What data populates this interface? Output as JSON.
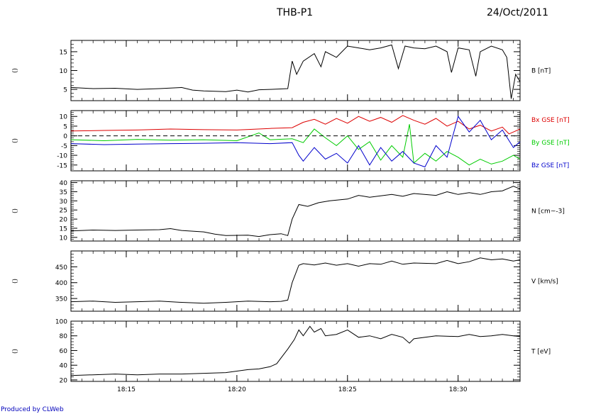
{
  "header": {
    "title": "THB-P1",
    "date": "24/Oct/2011"
  },
  "footer": {
    "credit": "Produced by CLWeb"
  },
  "chart_data": [
    {
      "type": "line",
      "ylabel": "B [nT]",
      "left_label": "()",
      "ylim": [
        2,
        18
      ],
      "yticks": [
        5,
        10,
        15
      ],
      "xlim": [
        12.5,
        32.8
      ],
      "xticks": [
        15,
        20,
        25,
        30
      ],
      "xticklabels": [
        "18:15",
        "18:20",
        "18:25",
        "18:30"
      ],
      "series": [
        {
          "color": "#000000",
          "dashed": false,
          "x": [
            12.5,
            13.5,
            14.5,
            15.5,
            16.5,
            17.5,
            18.0,
            18.5,
            19.5,
            20.0,
            20.5,
            21.0,
            21.5,
            22.3,
            22.5,
            22.7,
            23.0,
            23.5,
            23.8,
            24.0,
            24.5,
            25.0,
            25.5,
            26.0,
            26.5,
            27.0,
            27.3,
            27.6,
            28.0,
            28.5,
            29.0,
            29.5,
            29.7,
            30.0,
            30.5,
            30.8,
            31.0,
            31.5,
            32.0,
            32.2,
            32.4,
            32.6,
            32.8
          ],
          "y": [
            5.5,
            5.2,
            5.3,
            5.0,
            5.2,
            5.5,
            4.8,
            4.6,
            4.4,
            4.8,
            4.3,
            4.9,
            5.0,
            5.2,
            12.5,
            9.0,
            12.5,
            14.5,
            11.0,
            15.0,
            13.5,
            16.5,
            16.0,
            15.5,
            16.0,
            16.8,
            10.5,
            16.5,
            16.0,
            15.8,
            16.5,
            15.0,
            9.5,
            16.0,
            15.5,
            8.5,
            15.0,
            16.5,
            15.5,
            13.5,
            2.5,
            9.0,
            7.0
          ]
        }
      ]
    },
    {
      "type": "line",
      "ylabel": "",
      "left_label": "()",
      "ylim": [
        -18,
        13
      ],
      "yticks": [
        -15,
        -10,
        -5,
        0,
        5,
        10
      ],
      "xlim": [
        12.5,
        32.8
      ],
      "xticks": [
        15,
        20,
        25,
        30
      ],
      "xticklabels": [
        "18:15",
        "18:20",
        "18:25",
        "18:30"
      ],
      "series": [
        {
          "name": "Bx GSE [nT]",
          "color": "#dd0000",
          "dashed": false,
          "x": [
            12.5,
            14.0,
            15.5,
            17.0,
            18.5,
            20.0,
            21.5,
            22.5,
            23.0,
            23.5,
            24.0,
            24.5,
            25.0,
            25.5,
            26.0,
            26.5,
            27.0,
            27.5,
            28.0,
            28.5,
            29.0,
            29.5,
            30.0,
            30.5,
            31.0,
            31.5,
            32.0,
            32.3,
            32.5,
            32.8
          ],
          "y": [
            2.5,
            2.8,
            3.0,
            3.5,
            3.2,
            3.0,
            3.8,
            4.2,
            7.0,
            8.5,
            6.0,
            9.0,
            6.5,
            10.0,
            7.5,
            9.5,
            7.0,
            10.5,
            8.0,
            6.0,
            9.0,
            5.0,
            7.5,
            3.5,
            5.5,
            2.5,
            4.5,
            1.0,
            2.0,
            3.5
          ]
        },
        {
          "name": "By GSE [nT]",
          "color": "#00cc00",
          "dashed": false,
          "x": [
            12.5,
            14.0,
            15.5,
            17.0,
            18.5,
            20.0,
            21.0,
            21.5,
            22.5,
            23.0,
            23.5,
            24.0,
            24.5,
            25.0,
            25.5,
            26.0,
            26.5,
            27.0,
            27.5,
            27.8,
            28.0,
            28.5,
            29.0,
            29.5,
            30.0,
            30.5,
            31.0,
            31.5,
            32.0,
            32.5,
            32.8
          ],
          "y": [
            -2.0,
            -2.5,
            -1.8,
            -2.2,
            -2.0,
            -2.5,
            1.5,
            -2.0,
            -1.5,
            -3.5,
            3.5,
            -1.0,
            -5.0,
            0.0,
            -7.0,
            -3.0,
            -12.5,
            -5.0,
            -11.0,
            6.0,
            -14.0,
            -9.0,
            -13.0,
            -8.0,
            -11.0,
            -15.0,
            -12.0,
            -14.5,
            -13.0,
            -10.0,
            -12.0
          ]
        },
        {
          "name": "Bz GSE [nT]",
          "color": "#0000cc",
          "dashed": false,
          "x": [
            12.5,
            14.0,
            15.5,
            17.0,
            18.5,
            20.0,
            21.5,
            22.5,
            22.8,
            23.0,
            23.5,
            24.0,
            24.5,
            25.0,
            25.5,
            26.0,
            26.5,
            27.0,
            27.5,
            28.0,
            28.5,
            29.0,
            29.5,
            30.0,
            30.5,
            31.0,
            31.5,
            32.0,
            32.5,
            32.8
          ],
          "y": [
            -4.0,
            -4.5,
            -4.2,
            -4.0,
            -3.8,
            -3.5,
            -4.0,
            -3.5,
            -10.0,
            -13.0,
            -6.0,
            -12.0,
            -9.0,
            -14.0,
            -5.0,
            -15.0,
            -6.0,
            -13.0,
            -8.0,
            -14.0,
            -16.0,
            -5.0,
            -11.0,
            10.0,
            2.0,
            8.0,
            -2.0,
            3.0,
            -6.0,
            -3.0
          ]
        },
        {
          "name": "",
          "color": "#000000",
          "dashed": true,
          "x": [
            12.5,
            32.8
          ],
          "y": [
            0,
            0
          ]
        }
      ]
    },
    {
      "type": "line",
      "ylabel": "N [cm^-3]",
      "left_label": "()",
      "ylim": [
        8,
        41
      ],
      "yticks": [
        10,
        15,
        20,
        25,
        30,
        35,
        40
      ],
      "xlim": [
        12.5,
        32.8
      ],
      "xticks": [
        15,
        20,
        25,
        30
      ],
      "xticklabels": [
        "18:15",
        "18:20",
        "18:25",
        "18:30"
      ],
      "series": [
        {
          "color": "#000000",
          "dashed": false,
          "x": [
            12.5,
            13.5,
            14.5,
            15.5,
            16.5,
            17.0,
            17.5,
            18.5,
            19.0,
            19.5,
            20.5,
            21.0,
            21.5,
            22.0,
            22.3,
            22.5,
            22.8,
            23.2,
            23.7,
            24.2,
            25.0,
            25.5,
            26.0,
            27.0,
            27.5,
            28.0,
            29.0,
            29.5,
            30.0,
            30.5,
            31.0,
            31.5,
            32.0,
            32.3,
            32.5,
            32.8
          ],
          "y": [
            13.5,
            14.0,
            13.8,
            14.0,
            14.2,
            14.8,
            13.8,
            13.0,
            11.8,
            11.0,
            11.2,
            10.5,
            11.5,
            12.0,
            11.0,
            20.0,
            28.0,
            27.0,
            29.0,
            30.0,
            31.0,
            33.0,
            32.0,
            33.5,
            32.5,
            34.0,
            33.0,
            35.0,
            33.5,
            34.5,
            33.5,
            35.0,
            35.5,
            37.0,
            38.0,
            36.5
          ]
        }
      ]
    },
    {
      "type": "line",
      "ylabel": "V [km/s]",
      "left_label": "()",
      "ylim": [
        310,
        500
      ],
      "yticks": [
        350,
        400,
        450
      ],
      "xlim": [
        12.5,
        32.8
      ],
      "xticks": [
        15,
        20,
        25,
        30
      ],
      "xticklabels": [
        "18:15",
        "18:20",
        "18:25",
        "18:30"
      ],
      "series": [
        {
          "color": "#000000",
          "dashed": false,
          "x": [
            12.5,
            13.5,
            14.5,
            15.5,
            16.5,
            17.5,
            18.5,
            19.5,
            20.5,
            21.5,
            22.0,
            22.3,
            22.5,
            22.8,
            23.0,
            23.5,
            24.0,
            24.5,
            25.0,
            25.5,
            26.0,
            26.5,
            27.0,
            27.5,
            28.0,
            29.0,
            29.5,
            30.0,
            30.5,
            31.0,
            31.5,
            32.0,
            32.5,
            32.8
          ],
          "y": [
            340,
            342,
            338,
            340,
            342,
            338,
            335,
            338,
            342,
            340,
            341,
            345,
            400,
            455,
            460,
            456,
            462,
            455,
            460,
            452,
            460,
            458,
            468,
            458,
            462,
            460,
            470,
            460,
            466,
            478,
            472,
            475,
            468,
            472
          ]
        }
      ]
    },
    {
      "type": "line",
      "ylabel": "T [eV]",
      "left_label": "()",
      "ylim": [
        18,
        100
      ],
      "yticks": [
        20,
        40,
        60,
        80,
        100
      ],
      "xlim": [
        12.5,
        32.8
      ],
      "xticks": [
        15,
        20,
        25,
        30
      ],
      "xticklabels": [
        "18:15",
        "18:20",
        "18:25",
        "18:30"
      ],
      "series": [
        {
          "color": "#000000",
          "dashed": false,
          "x": [
            12.5,
            13.5,
            14.5,
            15.5,
            16.5,
            17.5,
            18.5,
            19.5,
            20.0,
            20.5,
            21.0,
            21.5,
            21.8,
            22.0,
            22.3,
            22.6,
            22.8,
            23.0,
            23.3,
            23.5,
            23.8,
            24.0,
            24.5,
            25.0,
            25.5,
            26.0,
            26.5,
            27.0,
            27.5,
            27.8,
            28.0,
            29.0,
            30.0,
            30.5,
            31.0,
            31.5,
            32.0,
            32.5,
            32.8
          ],
          "y": [
            26,
            27,
            28,
            27,
            28,
            28,
            29,
            30,
            32,
            34,
            35,
            38,
            42,
            50,
            62,
            75,
            88,
            80,
            93,
            85,
            90,
            80,
            82,
            88,
            78,
            80,
            76,
            82,
            78,
            70,
            76,
            80,
            79,
            82,
            79,
            80,
            82,
            80,
            79
          ]
        }
      ]
    }
  ]
}
